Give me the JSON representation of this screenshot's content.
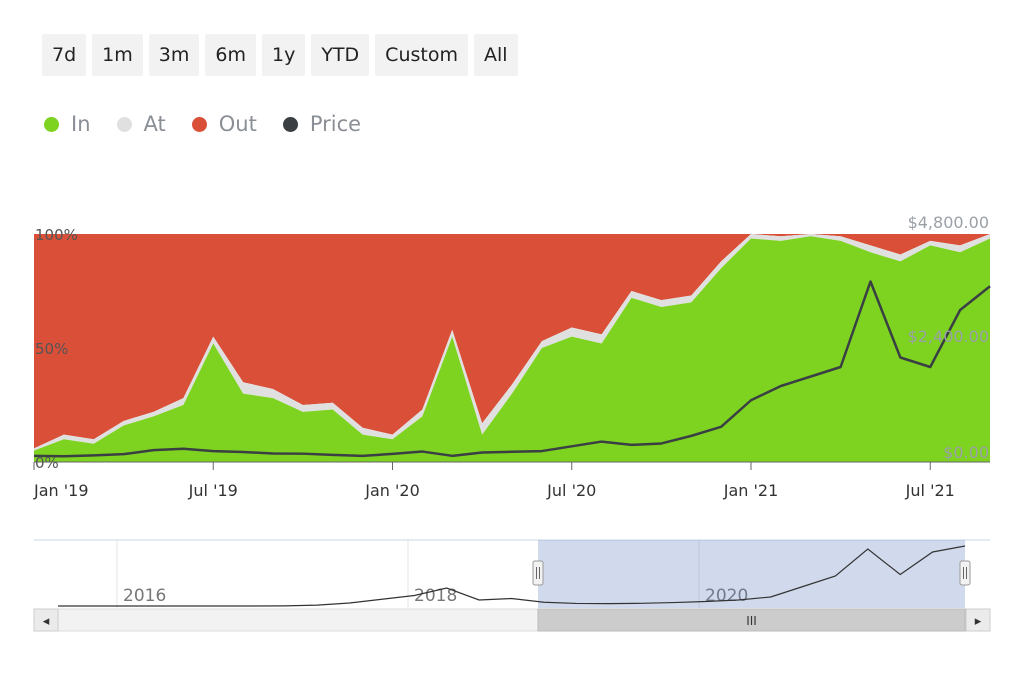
{
  "range_selector": {
    "buttons": [
      "7d",
      "1m",
      "3m",
      "6m",
      "1y",
      "YTD",
      "Custom",
      "All"
    ]
  },
  "legend": [
    {
      "label": "In",
      "color": "#7ed321"
    },
    {
      "label": "At",
      "color": "#e0e0e0"
    },
    {
      "label": "Out",
      "color": "#d94f38"
    },
    {
      "label": "Price",
      "color": "#3a3f44"
    }
  ],
  "navigator": {
    "year_labels": [
      "2016",
      "2018",
      "2020"
    ],
    "grip_label": "III",
    "left_arrow": "◂",
    "right_arrow": "▸"
  },
  "chart_data": {
    "type": "area",
    "stacked": true,
    "x": [
      "2019-01",
      "2019-02",
      "2019-03",
      "2019-04",
      "2019-05",
      "2019-06",
      "2019-07",
      "2019-08",
      "2019-09",
      "2019-10",
      "2019-11",
      "2019-12",
      "2020-01",
      "2020-02",
      "2020-03",
      "2020-04",
      "2020-05",
      "2020-06",
      "2020-07",
      "2020-08",
      "2020-09",
      "2020-10",
      "2020-11",
      "2020-12",
      "2021-01",
      "2021-02",
      "2021-03",
      "2021-04",
      "2021-05",
      "2021-06",
      "2021-07",
      "2021-08",
      "2021-09"
    ],
    "x_tick_labels": [
      "Jan '19",
      "Jul '19",
      "Jan '20",
      "Jul '20",
      "Jan '21",
      "Jul '21"
    ],
    "y_left": {
      "ticks": [
        "0%",
        "50%",
        "100%"
      ],
      "range": [
        0,
        100
      ],
      "unit": "%"
    },
    "y_right": {
      "ticks": [
        "$0.00",
        "$2,400.00",
        "$4,800.00"
      ],
      "range": [
        0,
        4800
      ]
    },
    "series": [
      {
        "name": "In",
        "values": [
          5,
          10,
          8,
          16,
          20,
          25,
          52,
          30,
          28,
          22,
          23,
          12,
          10,
          20,
          55,
          12,
          30,
          50,
          55,
          52,
          72,
          68,
          70,
          85,
          98,
          97,
          99,
          97,
          92,
          88,
          95,
          92,
          98
        ]
      },
      {
        "name": "At",
        "values": [
          1,
          2,
          2,
          2,
          2,
          3,
          3,
          5,
          4,
          3,
          3,
          3,
          2,
          3,
          3,
          5,
          4,
          3,
          4,
          4,
          3,
          3,
          3,
          3,
          2,
          2,
          1,
          2,
          3,
          3,
          2,
          3,
          2
        ]
      },
      {
        "name": "Out",
        "values": [
          94,
          88,
          90,
          82,
          78,
          72,
          45,
          65,
          68,
          75,
          74,
          85,
          88,
          77,
          42,
          83,
          66,
          47,
          41,
          44,
          25,
          29,
          27,
          12,
          0,
          1,
          0,
          1,
          5,
          9,
          3,
          5,
          0
        ]
      },
      {
        "name": "Price",
        "axis": "right",
        "values": [
          130,
          120,
          140,
          165,
          250,
          280,
          230,
          210,
          180,
          175,
          150,
          130,
          170,
          220,
          130,
          200,
          215,
          230,
          330,
          430,
          360,
          390,
          550,
          740,
          1300,
          1600,
          1800,
          2000,
          3800,
          2200,
          2000,
          3200,
          3700
        ]
      }
    ],
    "navigator_price": [
      0,
      0,
      0,
      0,
      0,
      0,
      0,
      10,
      60,
      200,
      450,
      700,
      1200,
      400,
      500,
      250,
      170,
      160,
      180,
      230,
      300,
      400,
      600,
      1300,
      2000,
      3800,
      2100,
      3600,
      4000
    ]
  }
}
